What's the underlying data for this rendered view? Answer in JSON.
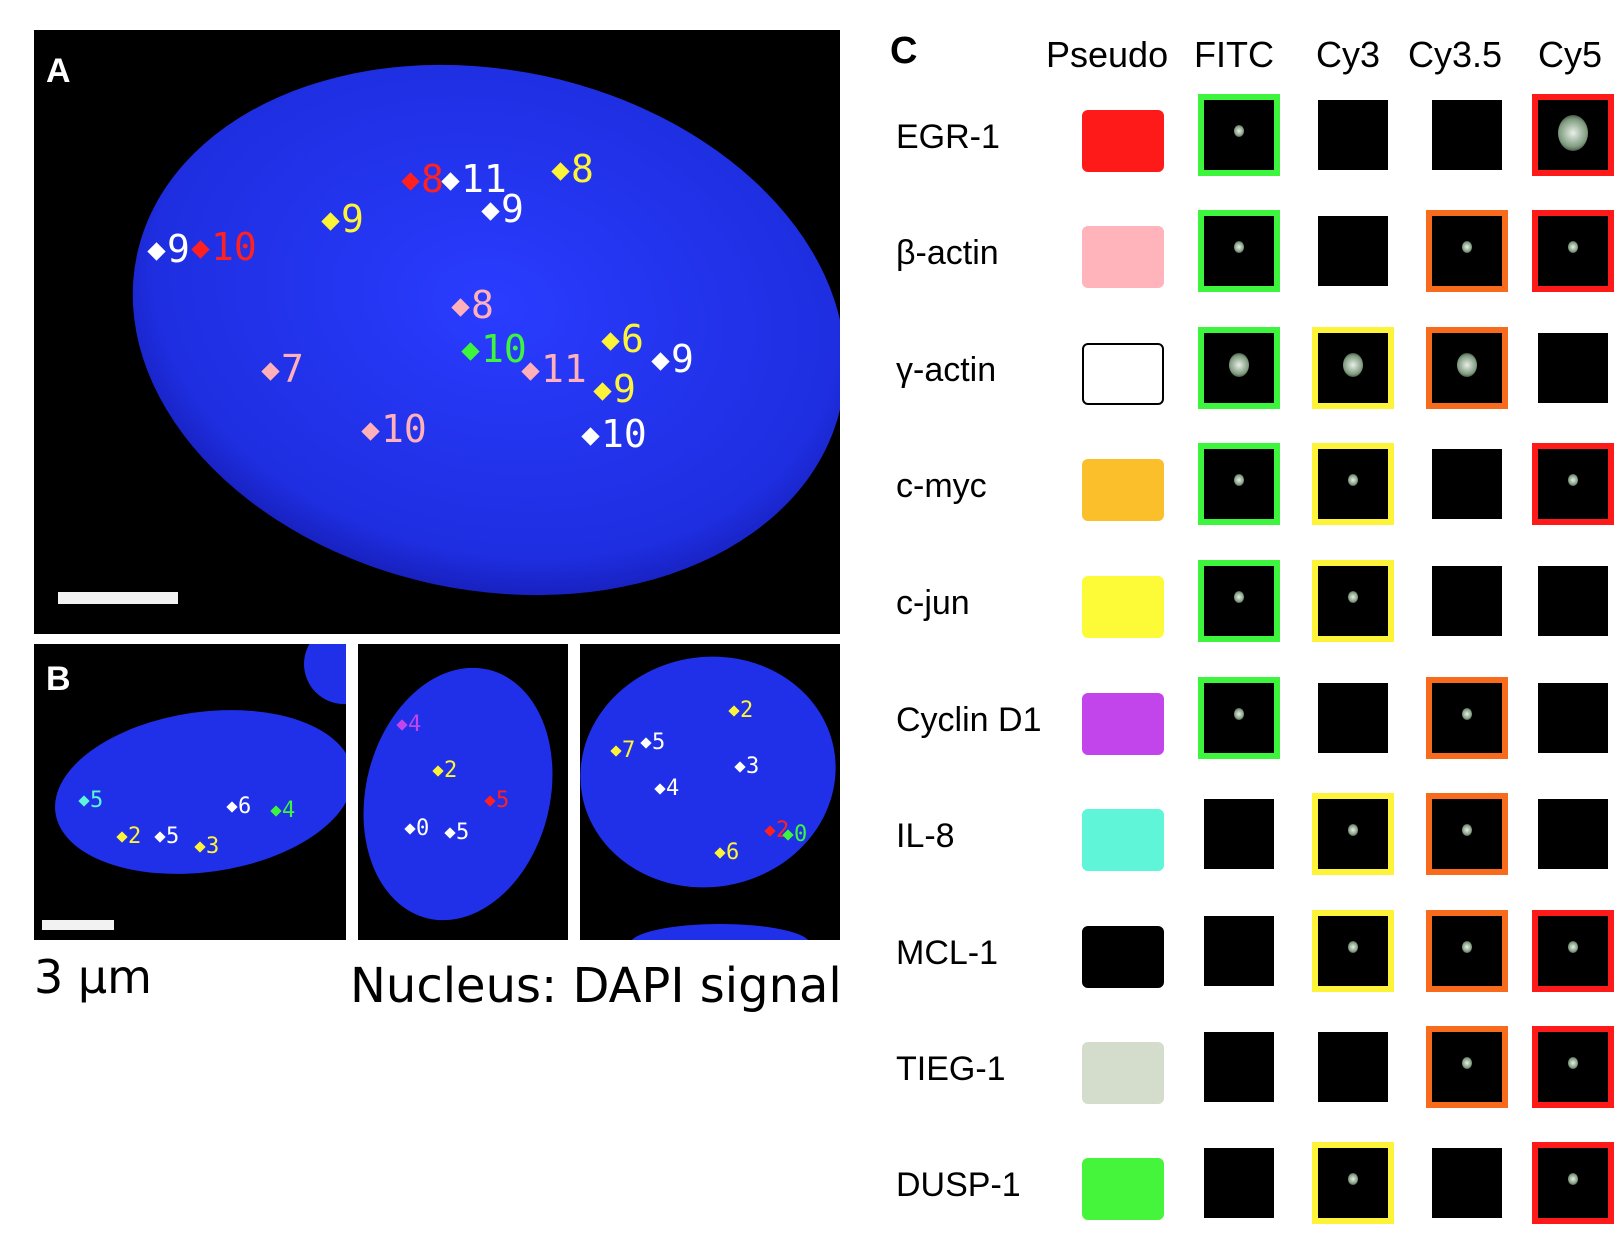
{
  "panelA": {
    "letter": "A"
  },
  "panelB": {
    "letter": "B"
  },
  "captions": {
    "scale": "3 µm",
    "nucleus": "Nucleus: DAPI signal"
  },
  "panelC": {
    "letter": "C",
    "columns": [
      "Pseudo",
      "FITC",
      "Cy3",
      "Cy3.5",
      "Cy5"
    ],
    "rows": [
      {
        "name": "EGR-1",
        "pseudo": "#ff1a1a",
        "outline": "#000000"
      },
      {
        "name": "β-actin",
        "pseudo": "#ffb3bb",
        "outline": "#ffb3bb"
      },
      {
        "name": "γ-actin",
        "pseudo": "#ffffff",
        "outline": "#000000"
      },
      {
        "name": "c-myc",
        "pseudo": "#fbbf2b",
        "outline": "#fbbf2b"
      },
      {
        "name": "c-jun",
        "pseudo": "#fdfb37",
        "outline": "#fdfb37"
      },
      {
        "name": "Cyclin D1",
        "pseudo": "#c245ec",
        "outline": "#c245ec"
      },
      {
        "name": "IL-8",
        "pseudo": "#5ef5d8",
        "outline": "#5ef5d8"
      },
      {
        "name": "MCL-1",
        "pseudo": "#000000",
        "outline": "#000000"
      },
      {
        "name": "TIEG-1",
        "pseudo": "#d4dccb",
        "outline": "#d4dccb"
      },
      {
        "name": "DUSP-1",
        "pseudo": "#45f53c",
        "outline": "#45f53c"
      }
    ],
    "tiles": [
      [
        "green",
        "none",
        "none",
        "red"
      ],
      [
        "green",
        "none",
        "orange",
        "red"
      ],
      [
        "green",
        "yellow",
        "orange",
        "none"
      ],
      [
        "green",
        "yellow",
        "none",
        "red"
      ],
      [
        "green",
        "yellow",
        "none",
        "none"
      ],
      [
        "green",
        "none",
        "orange",
        "none"
      ],
      [
        "none",
        "yellow",
        "orange",
        "none"
      ],
      [
        "none",
        "yellow",
        "orange",
        "red"
      ],
      [
        "none",
        "none",
        "orange",
        "red"
      ],
      [
        "none",
        "yellow",
        "none",
        "red"
      ]
    ]
  },
  "marksA": [
    {
      "t": "9",
      "c": "#ffffff"
    },
    {
      "t": "10",
      "c": "#ff2020"
    },
    {
      "t": "8",
      "c": "#ff2020"
    },
    {
      "t": "11",
      "c": "#ffffff"
    },
    {
      "t": "9",
      "c": "#ffffff"
    },
    {
      "t": "8",
      "c": "#fdf43a"
    },
    {
      "t": "9",
      "c": "#fdf43a"
    },
    {
      "t": "8",
      "c": "#ffb0b8"
    },
    {
      "t": "7",
      "c": "#ffb0b8"
    },
    {
      "t": "10",
      "c": "#3df53c"
    },
    {
      "t": "11",
      "c": "#ffb0b8"
    },
    {
      "t": "6",
      "c": "#fdf43a"
    },
    {
      "t": "9",
      "c": "#fdf43a"
    },
    {
      "t": "9",
      "c": "#ffffff"
    },
    {
      "t": "10",
      "c": "#ffb0b8"
    },
    {
      "t": "10",
      "c": "#ffffff"
    }
  ],
  "marksB": [
    {
      "t": "5",
      "c": "#5ef5d8"
    },
    {
      "t": "2",
      "c": "#fdf43a"
    },
    {
      "t": "5",
      "c": "#ffffff"
    },
    {
      "t": "3",
      "c": "#fdf43a"
    },
    {
      "t": "6",
      "c": "#ffffff"
    },
    {
      "t": "4",
      "c": "#3df53c"
    },
    {
      "t": "4",
      "c": "#c245ec"
    },
    {
      "t": "2",
      "c": "#fdf43a"
    },
    {
      "t": "0",
      "c": "#ffffff"
    },
    {
      "t": "5",
      "c": "#ffffff"
    },
    {
      "t": "5",
      "c": "#ff2020"
    },
    {
      "t": "7",
      "c": "#fdf43a"
    },
    {
      "t": "5",
      "c": "#ffffff"
    },
    {
      "t": "2",
      "c": "#fdf43a"
    },
    {
      "t": "3",
      "c": "#ffffff"
    },
    {
      "t": "4",
      "c": "#ffffff"
    },
    {
      "t": "6",
      "c": "#fdf43a"
    },
    {
      "t": "2",
      "c": "#ff2020"
    },
    {
      "t": "0",
      "c": "#3df53c"
    }
  ]
}
